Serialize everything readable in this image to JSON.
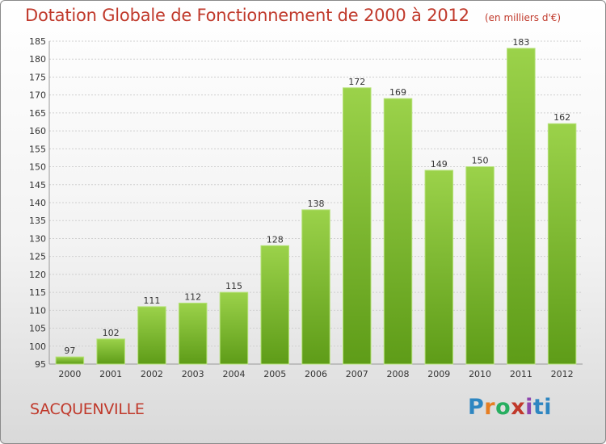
{
  "chart_data": {
    "type": "bar",
    "title": "Dotation Globale de Fonctionnement de 2000 à 2012",
    "unit_note": "(en milliers d'€)",
    "categories": [
      "2000",
      "2001",
      "2002",
      "2003",
      "2004",
      "2005",
      "2006",
      "2007",
      "2008",
      "2009",
      "2010",
      "2011",
      "2012"
    ],
    "values": [
      97,
      102,
      111,
      112,
      115,
      128,
      138,
      172,
      169,
      149,
      150,
      183,
      162
    ],
    "ylim": [
      95,
      185
    ],
    "yticks": [
      95,
      100,
      105,
      110,
      115,
      120,
      125,
      130,
      135,
      140,
      145,
      150,
      155,
      160,
      165,
      170,
      175,
      180,
      185
    ],
    "grid": true,
    "bar_color": "#7cb82f"
  },
  "commune": "SACQUENVILLE",
  "brand": {
    "p1": "P",
    "p2": "r",
    "p3": "o",
    "p4": "x",
    "p5": "i",
    "p6": "ti"
  }
}
